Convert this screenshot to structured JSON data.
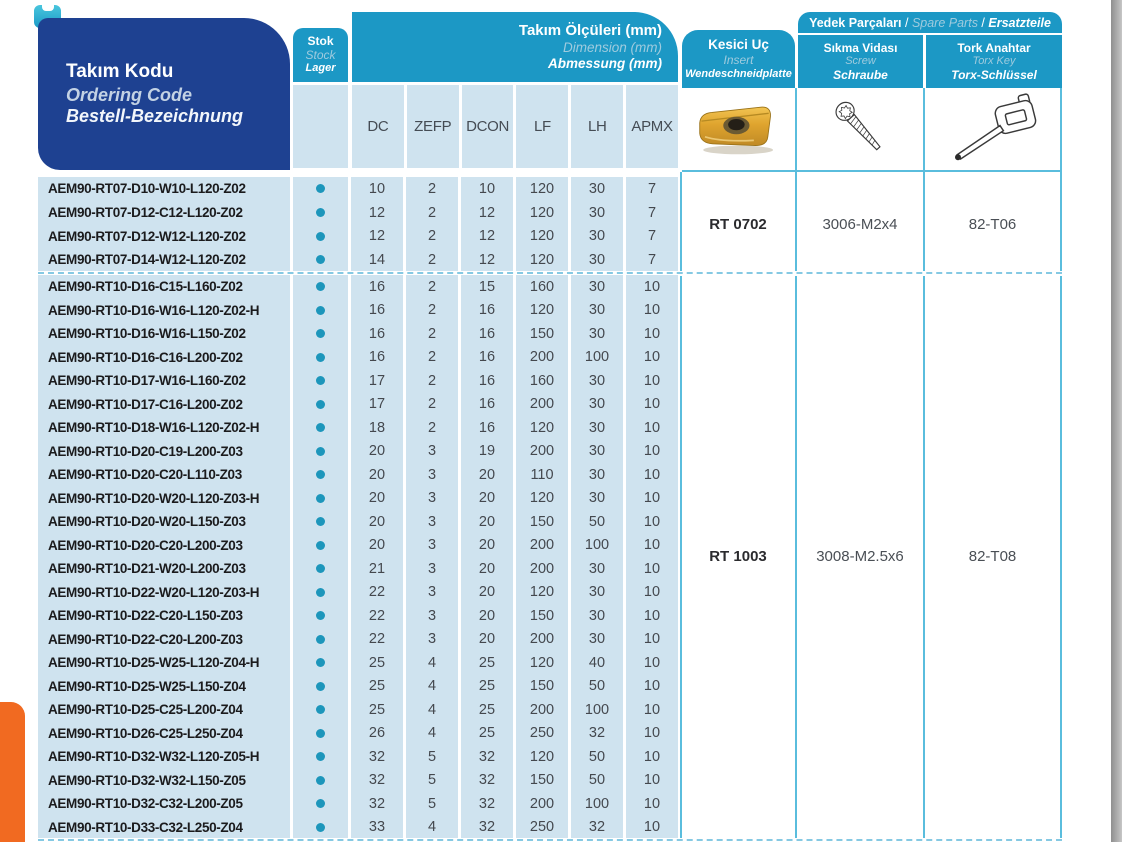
{
  "header": {
    "tool_code": {
      "tr": "Takım Kodu",
      "en": "Ordering Code",
      "de": "Bestell-Bezeichnung"
    },
    "stock": {
      "tr": "Stok",
      "en": "Stock",
      "de": "Lager"
    },
    "dimensions": {
      "tr": "Takım Ölçüleri (mm)",
      "en": "Dimension (mm)",
      "de": "Abmessung (mm)"
    },
    "dim_columns": [
      "DC",
      "ZEFP",
      "DCON",
      "LF",
      "LH",
      "APMX"
    ],
    "spare_parts": {
      "tr": "Yedek Parçaları",
      "en": "Spare Parts",
      "de": "Ersatzteile",
      "sep": " / "
    },
    "insert": {
      "tr": "Kesici Uç",
      "en": "Insert",
      "de": "Wendeschneidplatte"
    },
    "screw": {
      "tr": "Sıkma Vidası",
      "en": "Screw",
      "de": "Schraube"
    },
    "torx": {
      "tr": "Tork Anahtar",
      "en": "Torx Key",
      "de": "Torx-Schlüssel"
    }
  },
  "icons": [
    "bookmark-tab",
    "insert-photo",
    "screw-icon",
    "torx-key-icon",
    "stock-dot-icon"
  ],
  "colors": {
    "navy": "#1e4191",
    "teal": "#1c98c5",
    "cell_blue": "#cfe3ef",
    "dot_teal": "#1d96bb",
    "orange": "#f16a21",
    "line_teal": "#5abddd",
    "dash_blue": "#85c9e3",
    "en_text": "#9fcbde",
    "gray_edge": "#8f8f8f",
    "insert_gold": "#dfa42e"
  },
  "groups": [
    {
      "insert": "RT 0702",
      "screw": "3006-M2x4",
      "torx": "82-T06",
      "rows": [
        {
          "code": "AEM90-RT07-D10-W10-L120-Z02",
          "stock": true,
          "dims": [
            10,
            2,
            10,
            120,
            30,
            7
          ]
        },
        {
          "code": "AEM90-RT07-D12-C12-L120-Z02",
          "stock": true,
          "dims": [
            12,
            2,
            12,
            120,
            30,
            7
          ]
        },
        {
          "code": "AEM90-RT07-D12-W12-L120-Z02",
          "stock": true,
          "dims": [
            12,
            2,
            12,
            120,
            30,
            7
          ]
        },
        {
          "code": "AEM90-RT07-D14-W12-L120-Z02",
          "stock": true,
          "dims": [
            14,
            2,
            12,
            120,
            30,
            7
          ]
        }
      ]
    },
    {
      "insert": "RT 1003",
      "screw": "3008-M2.5x6",
      "torx": "82-T08",
      "rows": [
        {
          "code": "AEM90-RT10-D16-C15-L160-Z02",
          "stock": true,
          "dims": [
            16,
            2,
            15,
            160,
            30,
            10
          ]
        },
        {
          "code": "AEM90-RT10-D16-W16-L120-Z02-H",
          "stock": true,
          "dims": [
            16,
            2,
            16,
            120,
            30,
            10
          ]
        },
        {
          "code": "AEM90-RT10-D16-W16-L150-Z02",
          "stock": true,
          "dims": [
            16,
            2,
            16,
            150,
            30,
            10
          ]
        },
        {
          "code": "AEM90-RT10-D16-C16-L200-Z02",
          "stock": true,
          "dims": [
            16,
            2,
            16,
            200,
            100,
            10
          ]
        },
        {
          "code": "AEM90-RT10-D17-W16-L160-Z02",
          "stock": true,
          "dims": [
            17,
            2,
            16,
            160,
            30,
            10
          ]
        },
        {
          "code": "AEM90-RT10-D17-C16-L200-Z02",
          "stock": true,
          "dims": [
            17,
            2,
            16,
            200,
            30,
            10
          ]
        },
        {
          "code": "AEM90-RT10-D18-W16-L120-Z02-H",
          "stock": true,
          "dims": [
            18,
            2,
            16,
            120,
            30,
            10
          ]
        },
        {
          "code": "AEM90-RT10-D20-C19-L200-Z03",
          "stock": true,
          "dims": [
            20,
            3,
            19,
            200,
            30,
            10
          ]
        },
        {
          "code": "AEM90-RT10-D20-C20-L110-Z03",
          "stock": true,
          "dims": [
            20,
            3,
            20,
            110,
            30,
            10
          ]
        },
        {
          "code": "AEM90-RT10-D20-W20-L120-Z03-H",
          "stock": true,
          "dims": [
            20,
            3,
            20,
            120,
            30,
            10
          ]
        },
        {
          "code": "AEM90-RT10-D20-W20-L150-Z03",
          "stock": true,
          "dims": [
            20,
            3,
            20,
            150,
            50,
            10
          ]
        },
        {
          "code": "AEM90-RT10-D20-C20-L200-Z03",
          "stock": true,
          "dims": [
            20,
            3,
            20,
            200,
            100,
            10
          ]
        },
        {
          "code": "AEM90-RT10-D21-W20-L200-Z03",
          "stock": true,
          "dims": [
            21,
            3,
            20,
            200,
            30,
            10
          ]
        },
        {
          "code": "AEM90-RT10-D22-W20-L120-Z03-H",
          "stock": true,
          "dims": [
            22,
            3,
            20,
            120,
            30,
            10
          ]
        },
        {
          "code": "AEM90-RT10-D22-C20-L150-Z03",
          "stock": true,
          "dims": [
            22,
            3,
            20,
            150,
            30,
            10
          ]
        },
        {
          "code": "AEM90-RT10-D22-C20-L200-Z03",
          "stock": true,
          "dims": [
            22,
            3,
            20,
            200,
            30,
            10
          ]
        },
        {
          "code": "AEM90-RT10-D25-W25-L120-Z04-H",
          "stock": true,
          "dims": [
            25,
            4,
            25,
            120,
            40,
            10
          ]
        },
        {
          "code": "AEM90-RT10-D25-W25-L150-Z04",
          "stock": true,
          "dims": [
            25,
            4,
            25,
            150,
            50,
            10
          ]
        },
        {
          "code": "AEM90-RT10-D25-C25-L200-Z04",
          "stock": true,
          "dims": [
            25,
            4,
            25,
            200,
            100,
            10
          ]
        },
        {
          "code": "AEM90-RT10-D26-C25-L250-Z04",
          "stock": true,
          "dims": [
            26,
            4,
            25,
            250,
            32,
            10
          ]
        },
        {
          "code": "AEM90-RT10-D32-W32-L120-Z05-H",
          "stock": true,
          "dims": [
            32,
            5,
            32,
            120,
            50,
            10
          ]
        },
        {
          "code": "AEM90-RT10-D32-W32-L150-Z05",
          "stock": true,
          "dims": [
            32,
            5,
            32,
            150,
            50,
            10
          ]
        },
        {
          "code": "AEM90-RT10-D32-C32-L200-Z05",
          "stock": true,
          "dims": [
            32,
            5,
            32,
            200,
            100,
            10
          ]
        },
        {
          "code": "AEM90-RT10-D33-C32-L250-Z04",
          "stock": true,
          "dims": [
            33,
            4,
            32,
            250,
            32,
            10
          ]
        }
      ]
    }
  ]
}
